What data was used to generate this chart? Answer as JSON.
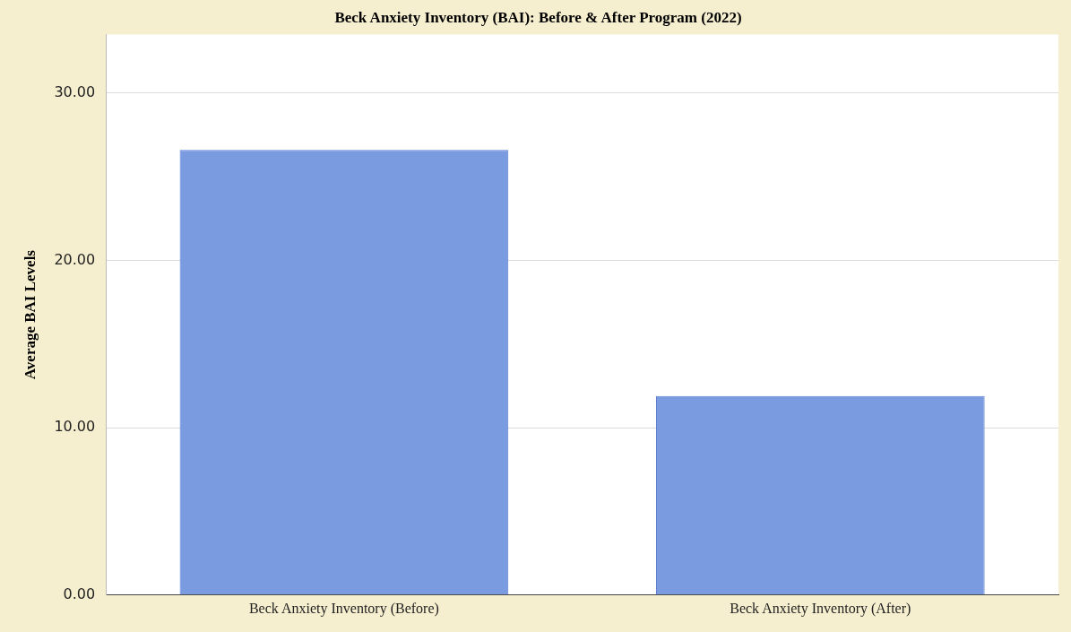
{
  "chart_data": {
    "type": "bar",
    "title": "Beck Anxiety Inventory (BAI): Before & After Program (2022)",
    "ylabel": "Average BAI Levels",
    "categories": [
      "Beck Anxiety Inventory (Before)",
      "Beck Anxiety Inventory (After)"
    ],
    "values": [
      26.6,
      11.9
    ],
    "color": "#7b9be0",
    "ylim": [
      0,
      33.5
    ],
    "yticks": [
      {
        "value": 0,
        "label": "0.00"
      },
      {
        "value": 10,
        "label": "10.00"
      },
      {
        "value": 20,
        "label": "20.00"
      },
      {
        "value": 30,
        "label": "30.00"
      }
    ],
    "grid": "y",
    "legend": false
  }
}
